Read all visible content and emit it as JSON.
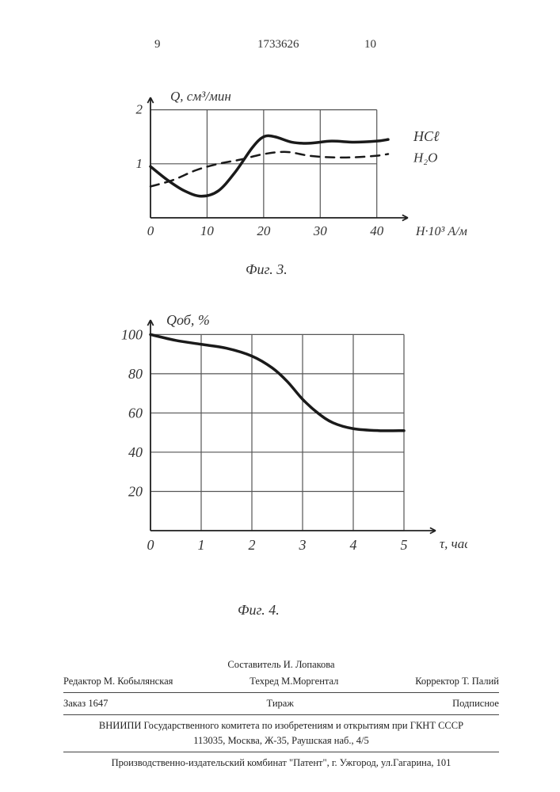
{
  "header": {
    "page_left": "9",
    "doc_number": "1733626",
    "page_right": "10"
  },
  "fig3": {
    "caption": "Фиг. 3.",
    "y_label": "Q, см³/мин",
    "x_label": "H·10³ А/м",
    "x_ticks": [
      "0",
      "10",
      "20",
      "30",
      "40"
    ],
    "y_ticks": [
      "1",
      "2"
    ],
    "xlim": [
      0,
      42
    ],
    "ylim": [
      0,
      2.2
    ],
    "series": [
      {
        "name": "HCl",
        "label": "HCℓ",
        "style": "solid",
        "color": "#1a1a1a",
        "width": 3.5,
        "points": [
          [
            0,
            0.95
          ],
          [
            3,
            0.7
          ],
          [
            6,
            0.5
          ],
          [
            9,
            0.4
          ],
          [
            12,
            0.5
          ],
          [
            15,
            0.85
          ],
          [
            18,
            1.3
          ],
          [
            20,
            1.5
          ],
          [
            22,
            1.5
          ],
          [
            25,
            1.4
          ],
          [
            28,
            1.38
          ],
          [
            32,
            1.42
          ],
          [
            36,
            1.4
          ],
          [
            40,
            1.42
          ],
          [
            42,
            1.45
          ]
        ]
      },
      {
        "name": "H2O",
        "label": "H₂O",
        "style": "dashed",
        "color": "#1a1a1a",
        "width": 2.5,
        "points": [
          [
            0,
            0.58
          ],
          [
            4,
            0.7
          ],
          [
            8,
            0.88
          ],
          [
            12,
            1.0
          ],
          [
            16,
            1.08
          ],
          [
            20,
            1.18
          ],
          [
            24,
            1.22
          ],
          [
            28,
            1.15
          ],
          [
            32,
            1.12
          ],
          [
            36,
            1.12
          ],
          [
            40,
            1.15
          ],
          [
            42,
            1.18
          ]
        ]
      }
    ]
  },
  "fig4": {
    "caption": "Фиг. 4.",
    "y_label": "Qоб, %",
    "x_label": "τ, час",
    "x_ticks": [
      "0",
      "1",
      "2",
      "3",
      "4",
      "5"
    ],
    "y_ticks": [
      "20",
      "40",
      "60",
      "80",
      "100"
    ],
    "xlim": [
      0,
      5
    ],
    "ylim": [
      0,
      105
    ],
    "series": [
      {
        "name": "curve",
        "style": "solid",
        "color": "#1a1a1a",
        "width": 3.5,
        "points": [
          [
            0,
            100
          ],
          [
            0.5,
            97
          ],
          [
            1.0,
            95
          ],
          [
            1.5,
            93
          ],
          [
            2.0,
            89
          ],
          [
            2.4,
            83
          ],
          [
            2.7,
            76
          ],
          [
            3.0,
            67
          ],
          [
            3.3,
            60
          ],
          [
            3.6,
            55
          ],
          [
            4.0,
            52
          ],
          [
            4.5,
            51
          ],
          [
            5.0,
            51
          ]
        ]
      }
    ]
  },
  "footer": {
    "compiler_label": "Составитель",
    "compiler_name": "И. Лопакова",
    "editor_label": "Редактор",
    "editor_name": "М. Кобылянская",
    "tech_label": "Техред",
    "tech_name": "М.Моргентал",
    "corrector_label": "Корректор",
    "corrector_name": "Т. Палий",
    "order_label": "Заказ",
    "order_num": "1647",
    "tirazh": "Тираж",
    "subscription": "Подписное",
    "org_line1": "ВНИИПИ Государственного комитета по изобретениям и открытиям при ГКНТ СССР",
    "org_line2": "113035, Москва, Ж-35, Раушская наб., 4/5",
    "publisher": "Производственно-издательский комбинат \"Патент\", г. Ужгород, ул.Гагарина, 101"
  }
}
